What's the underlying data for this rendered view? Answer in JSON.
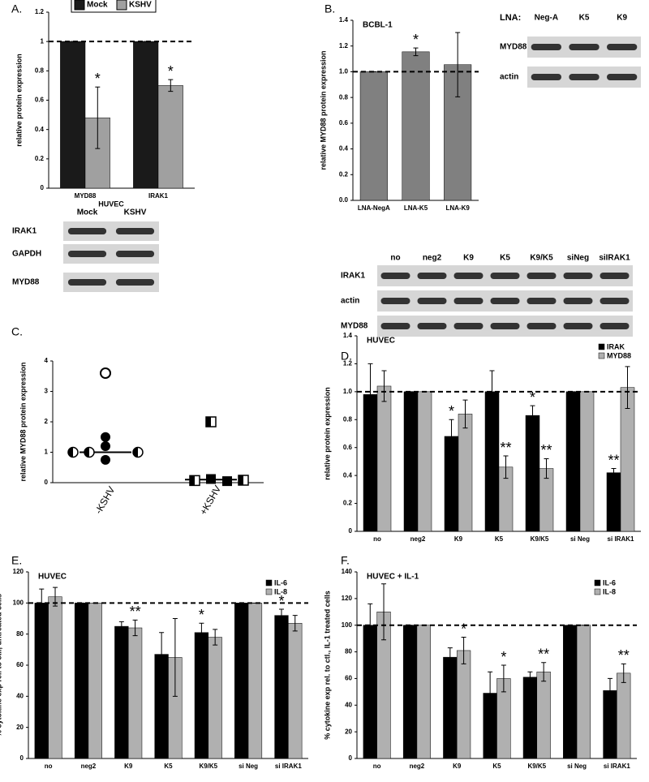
{
  "panel_labels": [
    "A.",
    "B.",
    "C.",
    "D.",
    "E.",
    "F."
  ],
  "blots": [
    {
      "header": "HUVEC",
      "lanes": [
        "Mock",
        "KSHV"
      ],
      "rows": [
        "IRAK1",
        "GAPDH",
        "MYD88"
      ]
    },
    {
      "lane_title": "LNA:",
      "lanes": [
        "Neg-A",
        "K5",
        "K9"
      ],
      "rows": [
        "MYD88",
        "actin"
      ]
    },
    {
      "lanes": [
        "no",
        "neg2",
        "K9",
        "K5",
        "K9/K5",
        "siNeg",
        "siIRAK1"
      ],
      "rows": [
        "IRAK1",
        "actin",
        "MYD88"
      ]
    }
  ],
  "chart_data": [
    {
      "type": "bar",
      "y_label": "relative protein expression",
      "categories": [
        "MYD88",
        "IRAK1"
      ],
      "series": [
        {
          "name": "Mock",
          "color": "#1a1a1a",
          "values": [
            1,
            1
          ],
          "errors": [
            0,
            0
          ]
        },
        {
          "name": "KSHV",
          "color": "#a0a0a0",
          "values": [
            0.48,
            0.7
          ],
          "errors": [
            0.21,
            0.04
          ]
        }
      ],
      "ylim": [
        0,
        1.2
      ],
      "yticks": [
        0,
        0.2,
        0.4,
        0.6,
        0.8,
        1,
        1.2
      ],
      "reference_line": 1,
      "legend": "top",
      "annotations": [
        {
          "text": "*",
          "category": 0,
          "series": 1
        },
        {
          "text": "*",
          "category": 1,
          "series": 1
        }
      ]
    },
    {
      "type": "bar",
      "title": "BCBL-1",
      "y_label": "relative MYD88 protein expression",
      "categories": [
        "LNA-NegA",
        "LNA-K5",
        "LNA-K9"
      ],
      "values": [
        1.0,
        1.155,
        1.055
      ],
      "errors": [
        0,
        0.03,
        0.25
      ],
      "color": "#808080",
      "ylim": [
        0,
        1.4
      ],
      "yticks": [
        {
          "value": 0,
          "label": "0.0"
        },
        0.2,
        0.4,
        0.6,
        0.8,
        {
          "value": 1,
          "label": "1.0"
        },
        1.2,
        1.4
      ],
      "reference_line": 1,
      "annotations": [
        {
          "text": "*",
          "category": 1
        }
      ]
    },
    {
      "type": "dot",
      "y_label": "relative MYD88 protein expression",
      "categories": [
        "-KSHV",
        "+KSHV"
      ],
      "groups": [
        {
          "values": [
            3.6,
            1.5,
            1.2,
            0.75,
            1.0,
            1.0,
            1.0
          ],
          "styles": [
            "open",
            "filled",
            "filled",
            "filled",
            "half",
            "half",
            "half"
          ],
          "median": 1.0
        },
        {
          "values": [
            2.0,
            0.12,
            0.05,
            0.07,
            0.08
          ],
          "styles": [
            "half-square",
            "square",
            "square",
            "half-square",
            "half-square"
          ],
          "median": 0.1
        }
      ],
      "ylim": [
        0,
        4
      ],
      "yticks": [
        0,
        1,
        2,
        3,
        4
      ]
    },
    {
      "type": "bar",
      "title": "HUVEC",
      "y_label": "relative protein expression",
      "categories": [
        "no",
        "neg2",
        "K9",
        "K5",
        "K9/K5",
        "si Neg",
        "si IRAK1"
      ],
      "series": [
        {
          "name": "IRAK",
          "color": "#000000",
          "values": [
            0.98,
            1.0,
            0.68,
            1.0,
            0.83,
            1.0,
            0.42
          ],
          "errors": [
            0.22,
            0,
            0.12,
            0.15,
            0.07,
            0,
            0.03
          ]
        },
        {
          "name": "MYD88",
          "color": "#b0b0b0",
          "values": [
            1.04,
            1.0,
            0.84,
            0.46,
            0.45,
            1.0,
            1.03
          ],
          "errors": [
            0.11,
            0,
            0.1,
            0.08,
            0.07,
            0,
            0.15
          ]
        }
      ],
      "ylim": [
        0,
        1.4
      ],
      "yticks": [
        0,
        0.2,
        0.4,
        0.6,
        0.8,
        {
          "value": 1,
          "label": "1.0"
        },
        1.2,
        1.4
      ],
      "reference_line": 1,
      "legend": "upper right",
      "annotations": [
        {
          "text": "*",
          "category": 2,
          "series": 0
        },
        {
          "text": "**",
          "category": 3,
          "series": 1
        },
        {
          "text": "*",
          "category": 4,
          "series": 0
        },
        {
          "text": "**",
          "category": 4,
          "series": 1
        },
        {
          "text": "**",
          "category": 6,
          "series": 0
        }
      ]
    },
    {
      "type": "bar",
      "title": "HUVEC",
      "y_label": "% cytokine exp rel. to ctl., untreated cells",
      "categories": [
        "no",
        "neg2",
        "K9",
        "K5",
        "K9/K5",
        "si Neg",
        "si IRAK1"
      ],
      "series": [
        {
          "name": "IL-6",
          "color": "#000000",
          "values": [
            100,
            100,
            85,
            67,
            81,
            100,
            92
          ],
          "errors": [
            9,
            0,
            3,
            14,
            6,
            0,
            4
          ]
        },
        {
          "name": "IL-8",
          "color": "#b0b0b0",
          "values": [
            104,
            100,
            84,
            65,
            78,
            100,
            87
          ],
          "errors": [
            6,
            0,
            5,
            25,
            5,
            0,
            5
          ]
        }
      ],
      "ylim": [
        0,
        120
      ],
      "yticks": [
        0,
        20,
        40,
        60,
        80,
        100,
        120
      ],
      "reference_line": 100,
      "legend": "upper right",
      "annotations": [
        {
          "text": "**",
          "category": 2,
          "series": 1
        },
        {
          "text": "*",
          "category": 4,
          "series": 0
        },
        {
          "text": "*",
          "category": 6,
          "series": 0
        }
      ]
    },
    {
      "type": "bar",
      "title": "HUVEC + IL-1",
      "y_label": "% cytokine exp rel. to ctl., IL-1 treated cells",
      "categories": [
        "no",
        "neg2",
        "K9",
        "K5",
        "K9/K5",
        "si Neg",
        "si IRAK1"
      ],
      "series": [
        {
          "name": "IL-6",
          "color": "#000000",
          "values": [
            100,
            100,
            76,
            49,
            61,
            100,
            51
          ],
          "errors": [
            16,
            0,
            7,
            16,
            4,
            0,
            9
          ]
        },
        {
          "name": "IL-8",
          "color": "#b0b0b0",
          "values": [
            110,
            100,
            81,
            60,
            65,
            100,
            64
          ],
          "errors": [
            21,
            0,
            10,
            10,
            7,
            0,
            7
          ]
        }
      ],
      "ylim": [
        0,
        140
      ],
      "yticks": [
        0,
        20,
        40,
        60,
        80,
        100,
        120,
        140
      ],
      "reference_line": 100,
      "legend": "upper right",
      "annotations": [
        {
          "text": "*",
          "category": 2,
          "series": 1
        },
        {
          "text": "*",
          "category": 3,
          "series": 1
        },
        {
          "text": "**",
          "category": 4,
          "series": 1
        },
        {
          "text": "**",
          "category": 6,
          "series": 1
        }
      ]
    }
  ]
}
